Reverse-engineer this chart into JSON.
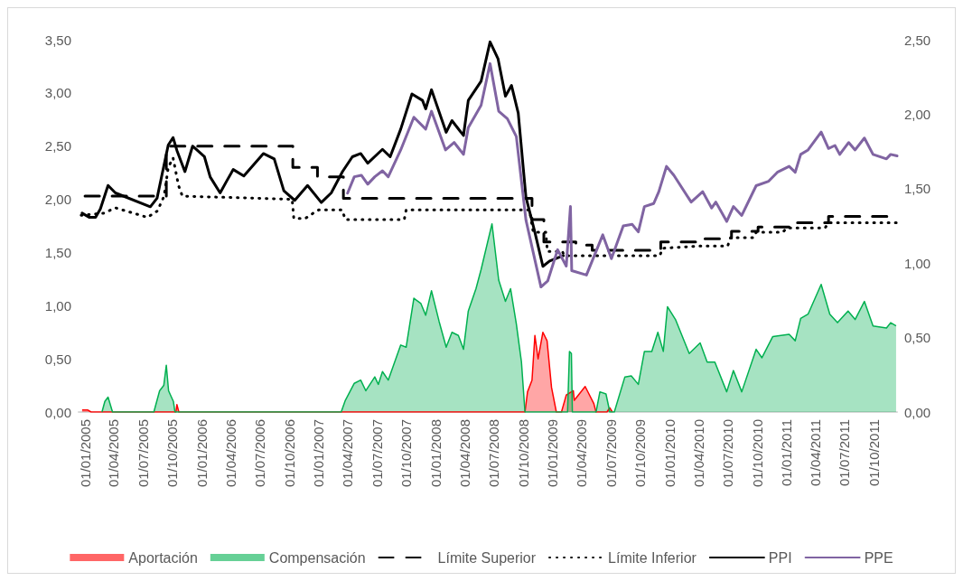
{
  "chart_data": {
    "type": "line",
    "legend": "bottom",
    "grid": false,
    "marker": "none",
    "xlim": [
      "2004-12-12",
      "2011-12-12"
    ],
    "xticks": [
      {
        "value": "2005-01-01",
        "label": "01/01/2005"
      },
      {
        "value": "2005-04-01",
        "label": "01/04/2005"
      },
      {
        "value": "2005-07-01",
        "label": "01/07/2005"
      },
      {
        "value": "2005-10-01",
        "label": "01/10/2005"
      },
      {
        "value": "2006-01-01",
        "label": "01/01/2006"
      },
      {
        "value": "2006-04-01",
        "label": "01/04/2006"
      },
      {
        "value": "2006-07-01",
        "label": "01/07/2006"
      },
      {
        "value": "2006-10-01",
        "label": "01/10/2006"
      },
      {
        "value": "2007-01-01",
        "label": "01/01/2007"
      },
      {
        "value": "2007-04-01",
        "label": "01/04/2007"
      },
      {
        "value": "2007-07-01",
        "label": "01/07/2007"
      },
      {
        "value": "2007-10-01",
        "label": "01/10/2007"
      },
      {
        "value": "2008-01-01",
        "label": "01/01/2008"
      },
      {
        "value": "2008-04-01",
        "label": "01/04/2008"
      },
      {
        "value": "2008-07-01",
        "label": "01/07/2008"
      },
      {
        "value": "2008-10-01",
        "label": "01/10/2008"
      },
      {
        "value": "2009-01-01",
        "label": "01/01/2009"
      },
      {
        "value": "2009-04-01",
        "label": "01/04/2009"
      },
      {
        "value": "2009-07-01",
        "label": "01/07/2009"
      },
      {
        "value": "2009-10-01",
        "label": "01/10/2009"
      },
      {
        "value": "2010-01-01",
        "label": "01/01/2010"
      },
      {
        "value": "2010-04-01",
        "label": "01/04/2010"
      },
      {
        "value": "2010-07-01",
        "label": "01/07/2010"
      },
      {
        "value": "2010-10-01",
        "label": "01/10/2010"
      },
      {
        "value": "2011-01-01",
        "label": "01/01/2011"
      },
      {
        "value": "2011-04-01",
        "label": "01/04/2011"
      },
      {
        "value": "2011-07-01",
        "label": "01/07/2011"
      },
      {
        "value": "2011-10-01",
        "label": "01/10/2011"
      }
    ],
    "ylim": [
      0,
      3.5
    ],
    "yticks": [
      {
        "value": 0,
        "label": "0,00"
      },
      {
        "value": 0.5,
        "label": "0,50"
      },
      {
        "value": 1,
        "label": "1,00"
      },
      {
        "value": 1.5,
        "label": "1,50"
      },
      {
        "value": 2,
        "label": "2,00"
      },
      {
        "value": 2.5,
        "label": "2,50"
      },
      {
        "value": 3,
        "label": "3,00"
      },
      {
        "value": 3.5,
        "label": "3,50"
      }
    ],
    "y2lim": [
      0,
      2.5
    ],
    "y2ticks": [
      {
        "value": 0,
        "label": "0,00"
      },
      {
        "value": 0.5,
        "label": "0,50"
      },
      {
        "value": 1,
        "label": "1,00"
      },
      {
        "value": 1.5,
        "label": "1,50"
      },
      {
        "value": 2,
        "label": "2,00"
      },
      {
        "value": 2.5,
        "label": "2,50"
      }
    ],
    "series": [
      {
        "name": "Aportación",
        "type": "area",
        "color": "#ff0000",
        "x": [
          "2004-12-23",
          "2005-01-09",
          "2005-01-20",
          "2005-10-12",
          "2005-10-15",
          "2005-10-21",
          "2008-10-06",
          "2008-10-14",
          "2008-10-28",
          "2008-11-06",
          "2008-11-16",
          "2008-12-01",
          "2008-12-14",
          "2008-12-28",
          "2009-01-12",
          "2009-01-28",
          "2009-02-12",
          "2009-03-06",
          "2009-03-09",
          "2009-04-12",
          "2009-05-09",
          "2009-05-16",
          "2009-06-19",
          "2009-06-28",
          "2009-07-06"
        ],
        "values": [
          0.02,
          0.02,
          0,
          0,
          0.07,
          0,
          0,
          0.19,
          0.3,
          0.72,
          0.5,
          0.75,
          0.67,
          0.23,
          0,
          0,
          0.16,
          0.2,
          0.11,
          0.24,
          0.08,
          0,
          0,
          0.04,
          0
        ]
      },
      {
        "name": "Compensación",
        "type": "area",
        "color": "#00b050",
        "x": [
          "2005-02-23",
          "2005-03-04",
          "2005-03-14",
          "2005-03-28",
          "2005-08-04",
          "2005-08-22",
          "2005-09-04",
          "2005-09-12",
          "2005-09-19",
          "2005-10-04",
          "2005-10-09",
          "2007-03-12",
          "2007-03-25",
          "2007-04-22",
          "2007-05-12",
          "2007-05-28",
          "2007-06-25",
          "2007-07-06",
          "2007-07-19",
          "2007-08-06",
          "2007-09-14",
          "2007-10-01",
          "2007-10-25",
          "2007-11-16",
          "2007-12-01",
          "2007-12-19",
          "2008-01-12",
          "2008-02-03",
          "2008-02-21",
          "2008-03-12",
          "2008-03-28",
          "2008-04-12",
          "2008-05-06",
          "2008-05-22",
          "2008-06-25",
          "2008-07-16",
          "2008-08-06",
          "2008-08-22",
          "2008-09-09",
          "2008-09-25",
          "2008-10-06",
          "2009-02-16",
          "2009-02-22",
          "2009-02-28",
          "2009-03-03",
          "2009-05-16",
          "2009-05-28",
          "2009-06-16",
          "2009-06-28",
          "2009-07-12",
          "2009-08-14",
          "2009-09-03",
          "2009-09-25",
          "2009-10-14",
          "2009-11-06",
          "2009-11-25",
          "2009-12-12",
          "2009-12-25",
          "2010-01-19",
          "2010-03-03",
          "2010-04-06",
          "2010-04-28",
          "2010-05-22",
          "2010-06-28",
          "2010-07-19",
          "2010-08-14",
          "2010-09-28",
          "2010-10-16",
          "2010-11-19",
          "2011-01-09",
          "2011-01-28",
          "2011-02-14",
          "2011-03-09",
          "2011-04-19",
          "2011-05-16",
          "2011-06-09",
          "2011-07-12",
          "2011-08-03",
          "2011-09-01",
          "2011-09-28",
          "2011-11-09",
          "2011-11-22",
          "2011-12-09"
        ],
        "values": [
          0,
          0.1,
          0.14,
          0,
          0,
          0.2,
          0.25,
          0.44,
          0.2,
          0.1,
          0,
          0,
          0.11,
          0.27,
          0.3,
          0.2,
          0.33,
          0.26,
          0.38,
          0.3,
          0.63,
          0.61,
          1.07,
          1.02,
          0.91,
          1.14,
          0.85,
          0.61,
          0.75,
          0.72,
          0.59,
          0.95,
          1.16,
          1.34,
          1.77,
          1.24,
          1.04,
          1.16,
          0.83,
          0.47,
          0,
          0,
          0.57,
          0.55,
          0,
          0,
          0.19,
          0.17,
          0,
          0,
          0.33,
          0.34,
          0.26,
          0.57,
          0.57,
          0.75,
          0.57,
          0.99,
          0.87,
          0.55,
          0.65,
          0.47,
          0.47,
          0.19,
          0.39,
          0.19,
          0.59,
          0.51,
          0.71,
          0.73,
          0.67,
          0.88,
          0.92,
          1.2,
          0.92,
          0.84,
          0.95,
          0.87,
          1.04,
          0.81,
          0.79,
          0.84,
          0.81
        ]
      },
      {
        "name": "Límite Superior",
        "type": "step",
        "color": "#000000",
        "line_style": "dashed",
        "x": [
          "2005-01-01",
          "2005-09-12",
          "2006-10-12",
          "2006-12-28",
          "2007-03-19",
          "2008-10-28",
          "2008-12-04",
          "2009-03-14",
          "2009-05-04",
          "2009-12-04",
          "2010-04-01",
          "2010-07-13",
          "2010-10-04",
          "2011-01-14",
          "2011-05-12",
          "2011-12-12"
        ],
        "values": [
          2.03,
          2.5,
          2.3,
          2.21,
          2.01,
          1.81,
          1.6,
          1.57,
          1.52,
          1.6,
          1.63,
          1.7,
          1.74,
          1.78,
          1.84,
          1.84
        ]
      },
      {
        "name": "Límite Inferior",
        "color": "#000000",
        "line_style": "dotted",
        "x": [
          "2004-12-20",
          "2005-03-01",
          "2005-04-06",
          "2005-06-01",
          "2005-07-15",
          "2005-08-15",
          "2005-09-05",
          "2005-09-18",
          "2005-10-03",
          "2005-10-20",
          "2005-11-01",
          "2006-10-10",
          "2006-10-15",
          "2006-11-20",
          "2006-12-15",
          "2007-01-01",
          "2007-03-15",
          "2007-03-25",
          "2007-09-25",
          "2007-10-01",
          "2008-10-20",
          "2008-11-01",
          "2008-12-10",
          "2008-12-15",
          "2009-01-31",
          "2009-02-05",
          "2009-12-01",
          "2009-12-10",
          "2010-04-01",
          "2010-07-01",
          "2010-07-10",
          "2010-09-20",
          "2010-09-28",
          "2010-12-20",
          "2011-01-01",
          "2011-05-01",
          "2011-05-12",
          "2011-12-12"
        ],
        "values": [
          1.85,
          1.87,
          1.92,
          1.87,
          1.83,
          1.89,
          2.03,
          2.3,
          2.39,
          2.13,
          2.03,
          2.0,
          1.82,
          1.82,
          1.87,
          1.9,
          1.9,
          1.81,
          1.81,
          1.9,
          1.9,
          1.69,
          1.69,
          1.51,
          1.51,
          1.47,
          1.47,
          1.54,
          1.56,
          1.56,
          1.64,
          1.64,
          1.69,
          1.69,
          1.73,
          1.73,
          1.78,
          1.78
        ]
      },
      {
        "name": "PPI",
        "color": "#000000",
        "line_style": "solid",
        "x": [
          "2004-12-23",
          "2005-01-14",
          "2005-02-03",
          "2005-02-18",
          "2005-03-14",
          "2005-04-06",
          "2005-07-24",
          "2005-08-14",
          "2005-09-18",
          "2005-10-03",
          "2005-10-15",
          "2005-11-09",
          "2005-12-03",
          "2006-01-09",
          "2006-01-27",
          "2006-02-27",
          "2006-03-21",
          "2006-04-09",
          "2006-05-12",
          "2006-07-12",
          "2006-08-15",
          "2006-09-14",
          "2006-10-18",
          "2006-11-27",
          "2007-01-09",
          "2007-02-09",
          "2007-03-16",
          "2007-04-16",
          "2007-05-12",
          "2007-06-03",
          "2007-07-19",
          "2007-08-12",
          "2007-09-14",
          "2007-10-19",
          "2007-11-21",
          "2007-12-01",
          "2007-12-19",
          "2008-02-03",
          "2008-02-21",
          "2008-03-28",
          "2008-04-12",
          "2008-05-22",
          "2008-06-19",
          "2008-07-14",
          "2008-08-06",
          "2008-08-25",
          "2008-09-15",
          "2008-10-09",
          "2008-11-06",
          "2008-12-01",
          "2008-12-22",
          "2009-02-03"
        ],
        "values": [
          1.87,
          1.83,
          1.83,
          1.91,
          2.13,
          2.06,
          1.93,
          2.01,
          2.51,
          2.58,
          2.46,
          2.26,
          2.5,
          2.4,
          2.21,
          2.06,
          2.18,
          2.28,
          2.22,
          2.43,
          2.38,
          2.08,
          1.99,
          2.13,
          1.97,
          2.06,
          2.26,
          2.4,
          2.43,
          2.34,
          2.47,
          2.4,
          2.66,
          2.99,
          2.93,
          2.85,
          3.03,
          2.63,
          2.74,
          2.6,
          2.93,
          3.11,
          3.48,
          3.32,
          2.97,
          3.07,
          2.81,
          2.02,
          1.69,
          1.37,
          1.42,
          1.47
        ]
      },
      {
        "name": "PPE",
        "color": "#8064a2",
        "line_style": "solid",
        "axis": "y2",
        "x": [
          "2007-04-01",
          "2007-04-22",
          "2007-05-14",
          "2007-06-03",
          "2007-06-25",
          "2007-07-19",
          "2007-08-06",
          "2007-09-14",
          "2007-10-25",
          "2007-12-01",
          "2007-12-19",
          "2008-02-01",
          "2008-02-28",
          "2008-03-28",
          "2008-04-12",
          "2008-05-22",
          "2008-06-19",
          "2008-07-16",
          "2008-08-12",
          "2008-09-09",
          "2008-10-09",
          "2008-11-25",
          "2008-12-16",
          "2009-01-16",
          "2009-02-12",
          "2009-02-25",
          "2009-03-01",
          "2009-04-16",
          "2009-06-06",
          "2009-07-03",
          "2009-08-09",
          "2009-09-06",
          "2009-09-25",
          "2009-10-14",
          "2009-11-12",
          "2009-11-28",
          "2009-12-22",
          "2010-01-14",
          "2010-03-09",
          "2010-04-14",
          "2010-05-12",
          "2010-05-25",
          "2010-06-28",
          "2010-07-19",
          "2010-08-14",
          "2010-09-28",
          "2010-11-06",
          "2010-12-03",
          "2011-01-09",
          "2011-01-28",
          "2011-02-14",
          "2011-03-09",
          "2011-04-19",
          "2011-05-12",
          "2011-06-01",
          "2011-06-16",
          "2011-07-14",
          "2011-08-03",
          "2011-09-01",
          "2011-09-28",
          "2011-11-09",
          "2011-11-22",
          "2011-12-12"
        ],
        "values": [
          1.47,
          1.58,
          1.59,
          1.53,
          1.58,
          1.62,
          1.58,
          1.76,
          1.98,
          1.9,
          2.02,
          1.76,
          1.81,
          1.73,
          1.91,
          2.06,
          2.34,
          2.02,
          1.97,
          1.85,
          1.29,
          0.84,
          0.88,
          1.09,
          0.98,
          1.38,
          0.95,
          0.92,
          1.19,
          1.03,
          1.25,
          1.26,
          1.21,
          1.38,
          1.4,
          1.48,
          1.65,
          1.59,
          1.41,
          1.48,
          1.37,
          1.41,
          1.28,
          1.38,
          1.32,
          1.52,
          1.55,
          1.61,
          1.65,
          1.61,
          1.73,
          1.76,
          1.88,
          1.77,
          1.79,
          1.73,
          1.81,
          1.76,
          1.84,
          1.73,
          1.7,
          1.73,
          1.72
        ]
      }
    ]
  }
}
